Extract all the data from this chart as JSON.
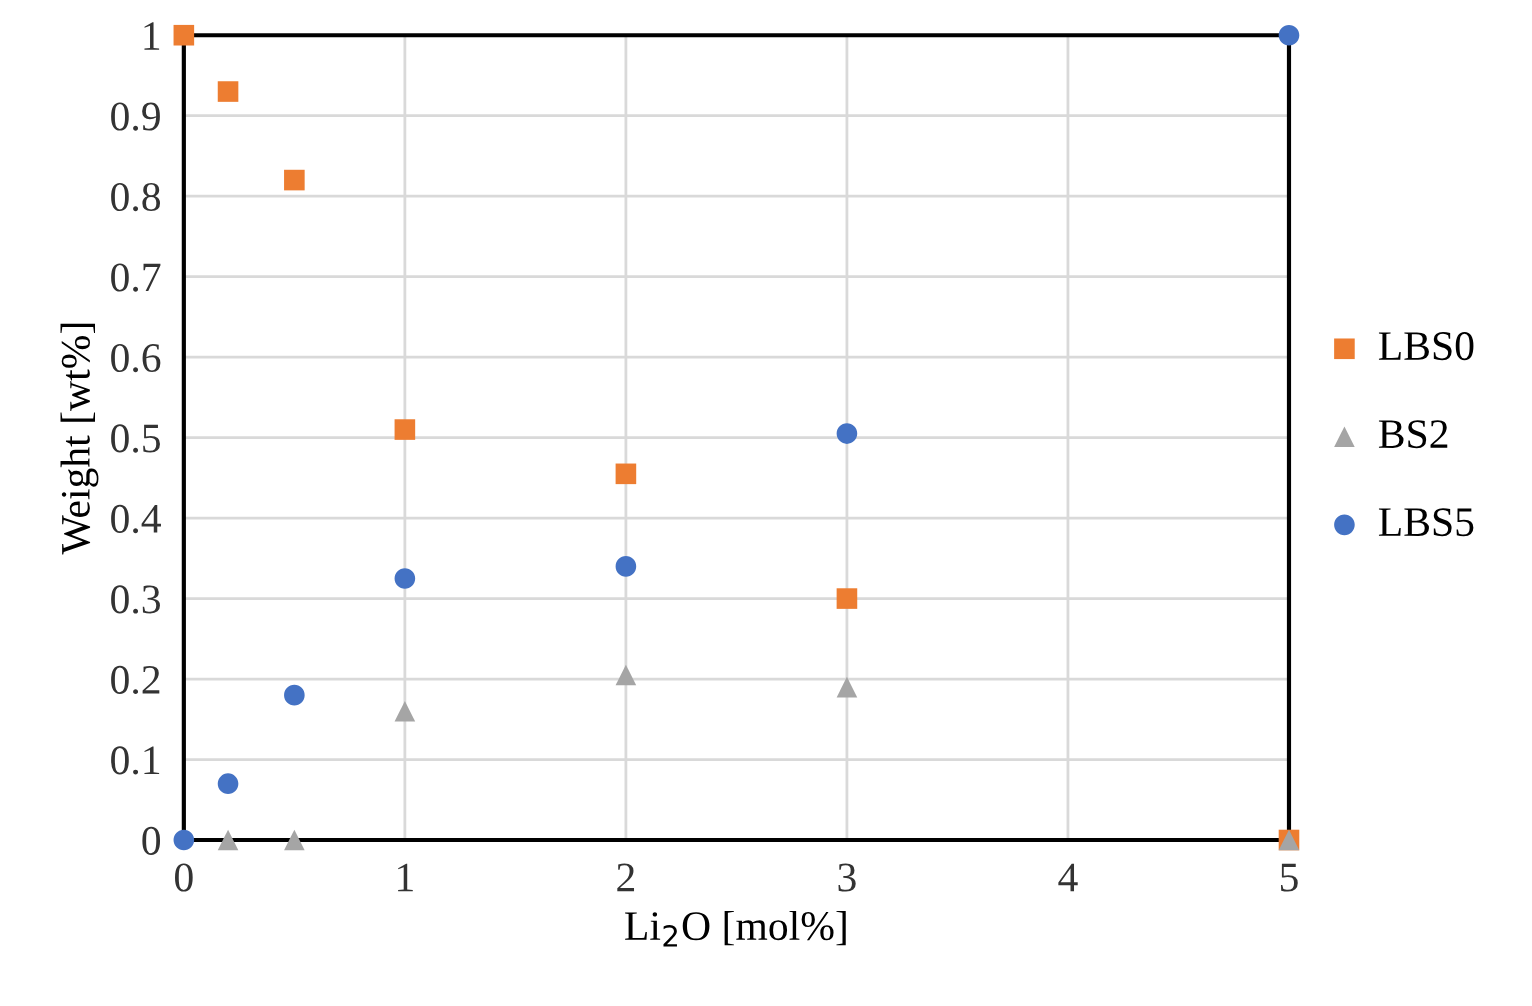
{
  "chart_data": {
    "type": "scatter",
    "xlabel": "Li$_{2}$O [mol%]",
    "ylabel": "Weight [wt%]",
    "xlim": [
      0,
      5
    ],
    "xticks": [
      0,
      1,
      2,
      3,
      4,
      5
    ],
    "ylim": [
      0,
      1
    ],
    "yticks": [
      0,
      {
        "value": 0.1,
        "label": "0.1"
      },
      {
        "value": 0.2,
        "label": "0.2"
      },
      {
        "value": 0.3,
        "label": "0.3"
      },
      {
        "value": 0.4,
        "label": "0.4"
      },
      {
        "value": 0.5,
        "label": "0.5"
      },
      {
        "value": 0.6,
        "label": "0.6"
      },
      {
        "value": 0.7,
        "label": "0.7"
      },
      {
        "value": 0.8,
        "label": "0.8"
      },
      {
        "value": 0.9,
        "label": "0.9"
      },
      1
    ],
    "grid": true,
    "legend": "right",
    "series": [
      {
        "name": "LBS0",
        "color": "#ed7d31",
        "marker": "square",
        "x": [
          0,
          0.2,
          0.5,
          1,
          2,
          3,
          5
        ],
        "values": [
          1.0,
          0.93,
          0.82,
          0.51,
          0.455,
          0.3,
          0
        ]
      },
      {
        "name": "BS2",
        "color": "#a5a5a5",
        "marker": "triangle",
        "x": [
          0.2,
          0.5,
          1,
          2,
          3,
          5
        ],
        "values": [
          0,
          0,
          0.16,
          0.205,
          0.19,
          0
        ]
      },
      {
        "name": "LBS5",
        "color": "#4472c4",
        "marker": "circle",
        "x": [
          0,
          0.2,
          0.5,
          1,
          2,
          3,
          5
        ],
        "values": [
          0,
          0.07,
          0.18,
          0.325,
          0.34,
          0.505,
          1.0
        ]
      }
    ]
  }
}
